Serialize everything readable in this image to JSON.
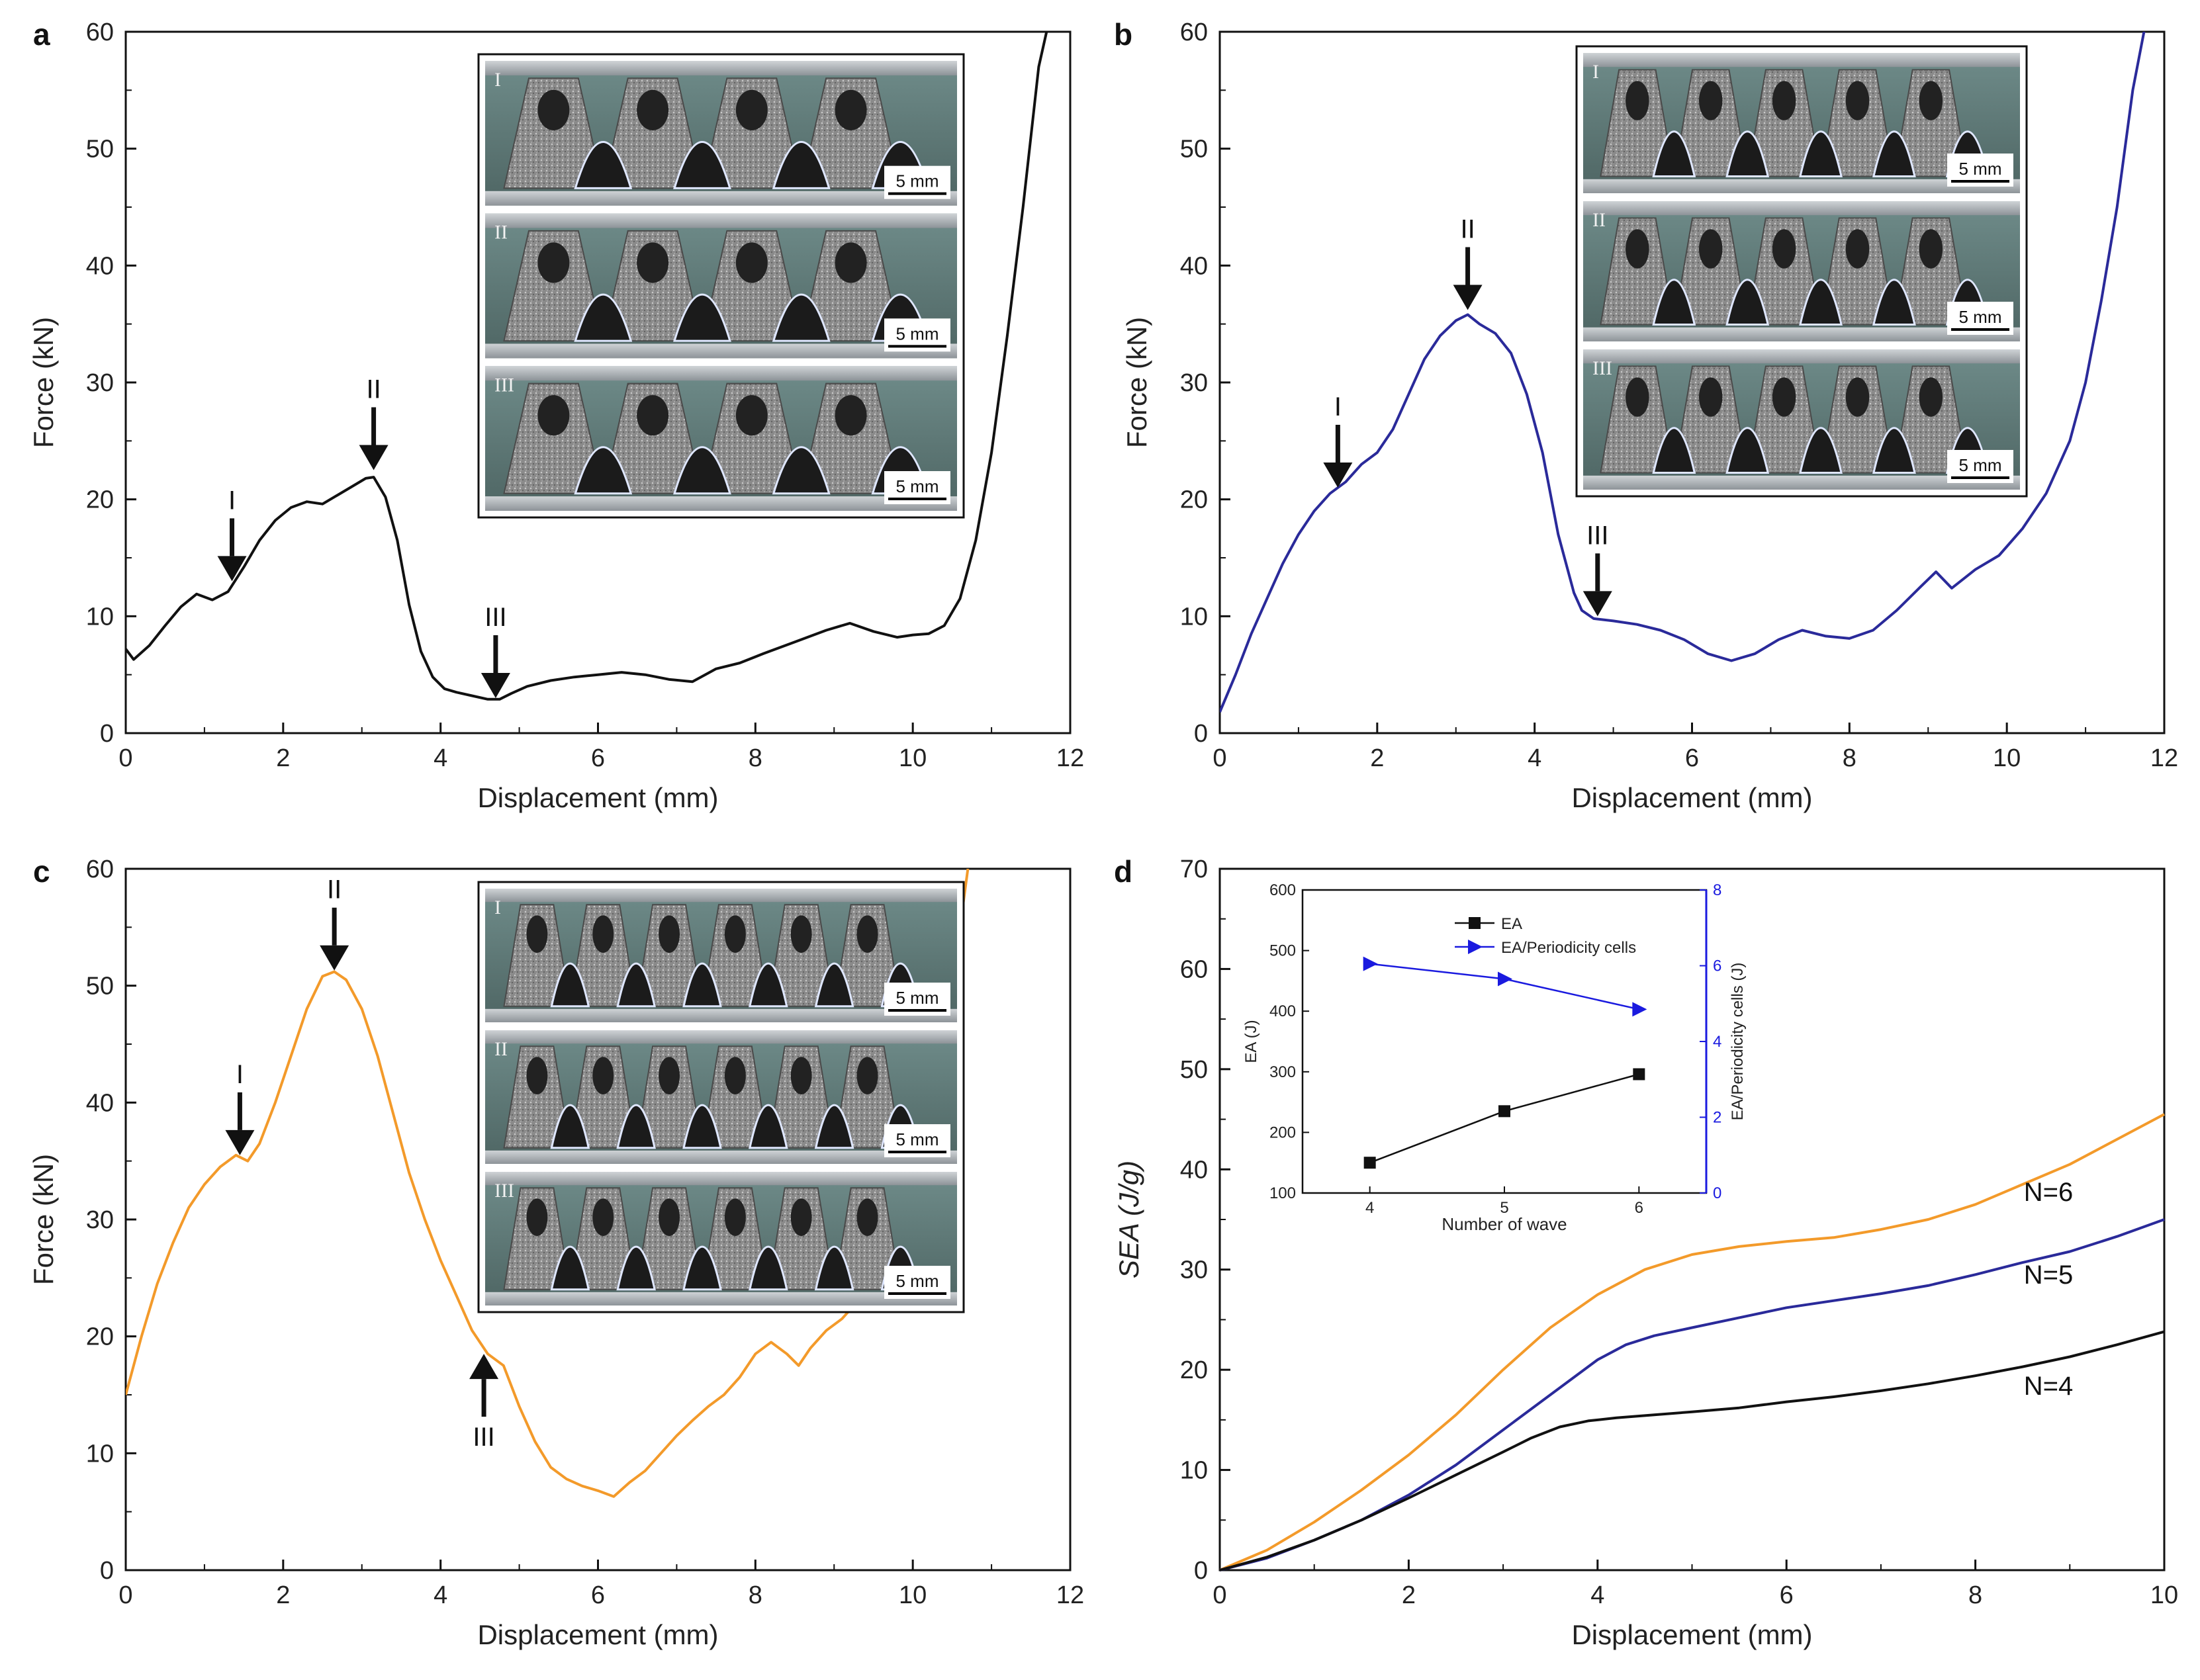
{
  "panels": [
    {
      "id": "a",
      "panel_label": "a",
      "chart_data": {
        "type": "line",
        "xlabel": "Displacement (mm)",
        "ylabel": "Force (kN)",
        "xlim": [
          0,
          12
        ],
        "ylim": [
          0,
          60
        ],
        "xticks": [
          0,
          2,
          4,
          6,
          8,
          10,
          12
        ],
        "yticks": [
          0,
          10,
          20,
          30,
          40,
          50,
          60
        ],
        "color": "#111111",
        "series": [
          {
            "x": [
              0,
              0.1,
              0.3,
              0.5,
              0.7,
              0.9,
              1.1,
              1.3,
              1.5,
              1.7,
              1.9,
              2.1,
              2.3,
              2.5,
              2.7,
              2.9,
              3.05,
              3.15,
              3.3,
              3.45,
              3.6,
              3.75,
              3.9,
              4.05,
              4.2,
              4.4,
              4.6,
              4.75,
              4.9,
              5.1,
              5.4,
              5.7,
              6.0,
              6.3,
              6.6,
              6.9,
              7.2,
              7.5,
              7.8,
              8.1,
              8.5,
              8.9,
              9.2,
              9.5,
              9.8,
              10.0,
              10.2,
              10.4,
              10.6,
              10.8,
              11.0,
              11.2,
              11.4,
              11.6,
              11.8
            ],
            "y": [
              7.2,
              6.3,
              7.5,
              9.2,
              10.8,
              11.9,
              11.4,
              12.1,
              14.2,
              16.5,
              18.2,
              19.3,
              19.8,
              19.6,
              20.4,
              21.2,
              21.8,
              21.9,
              20.2,
              16.5,
              11.0,
              7.0,
              4.8,
              3.8,
              3.5,
              3.2,
              2.9,
              2.9,
              3.4,
              4.0,
              4.5,
              4.8,
              5.0,
              5.2,
              5.0,
              4.6,
              4.4,
              5.5,
              6.0,
              6.8,
              7.8,
              8.8,
              9.4,
              8.7,
              8.2,
              8.4,
              8.5,
              9.2,
              11.5,
              16.5,
              24.0,
              34.0,
              45.0,
              57.0,
              63.0
            ]
          }
        ],
        "annotations": [
          {
            "label": "I",
            "x": 1.35,
            "y": 13.0,
            "dir": "down"
          },
          {
            "label": "II",
            "x": 3.15,
            "y": 22.5,
            "dir": "down"
          },
          {
            "label": "III",
            "x": 4.7,
            "y": 3.0,
            "dir": "down"
          }
        ]
      },
      "inset_photos": [
        {
          "label": "I",
          "scale": "5 mm"
        },
        {
          "label": "II",
          "scale": "5 mm"
        },
        {
          "label": "III",
          "scale": "5 mm"
        }
      ]
    },
    {
      "id": "b",
      "panel_label": "b",
      "chart_data": {
        "type": "line",
        "xlabel": "Displacement (mm)",
        "ylabel": "Force (kN)",
        "xlim": [
          0,
          12
        ],
        "ylim": [
          0,
          60
        ],
        "xticks": [
          0,
          2,
          4,
          6,
          8,
          10,
          12
        ],
        "yticks": [
          0,
          10,
          20,
          30,
          40,
          50,
          60
        ],
        "color": "#2a2a9a",
        "series": [
          {
            "x": [
              0,
              0.2,
              0.4,
              0.6,
              0.8,
              1.0,
              1.2,
              1.4,
              1.6,
              1.8,
              2.0,
              2.2,
              2.4,
              2.6,
              2.8,
              3.0,
              3.15,
              3.3,
              3.5,
              3.7,
              3.9,
              4.1,
              4.3,
              4.5,
              4.6,
              4.75,
              5.0,
              5.3,
              5.6,
              5.9,
              6.2,
              6.5,
              6.8,
              7.1,
              7.4,
              7.7,
              8.0,
              8.3,
              8.6,
              8.9,
              9.1,
              9.3,
              9.6,
              9.9,
              10.2,
              10.5,
              10.8,
              11.0,
              11.2,
              11.4,
              11.6,
              11.8
            ],
            "y": [
              1.8,
              5.0,
              8.5,
              11.5,
              14.5,
              17.0,
              19.0,
              20.5,
              21.5,
              23.0,
              24.0,
              26.0,
              29.0,
              32.0,
              34.0,
              35.3,
              35.8,
              35.0,
              34.2,
              32.5,
              29.0,
              24.0,
              17.0,
              12.0,
              10.5,
              9.8,
              9.6,
              9.3,
              8.8,
              8.0,
              6.8,
              6.2,
              6.8,
              8.0,
              8.8,
              8.3,
              8.1,
              8.8,
              10.5,
              12.5,
              13.8,
              12.4,
              14.0,
              15.2,
              17.5,
              20.5,
              25.0,
              30.0,
              37.0,
              45.0,
              55.0,
              62.0
            ]
          }
        ],
        "annotations": [
          {
            "label": "I",
            "x": 1.5,
            "y": 21.0,
            "dir": "down"
          },
          {
            "label": "II",
            "x": 3.15,
            "y": 36.2,
            "dir": "down"
          },
          {
            "label": "III",
            "x": 4.8,
            "y": 10.0,
            "dir": "down"
          }
        ]
      },
      "inset_photos": [
        {
          "label": "I",
          "scale": "5 mm"
        },
        {
          "label": "II",
          "scale": "5 mm"
        },
        {
          "label": "III",
          "scale": "5 mm"
        }
      ]
    },
    {
      "id": "c",
      "panel_label": "c",
      "chart_data": {
        "type": "line",
        "xlabel": "Displacement (mm)",
        "ylabel": "Force (kN)",
        "xlim": [
          0,
          12
        ],
        "ylim": [
          0,
          60
        ],
        "xticks": [
          0,
          2,
          4,
          6,
          8,
          10,
          12
        ],
        "yticks": [
          0,
          10,
          20,
          30,
          40,
          50,
          60
        ],
        "color": "#f39a2a",
        "series": [
          {
            "x": [
              0,
              0.2,
              0.4,
              0.6,
              0.8,
              1.0,
              1.2,
              1.4,
              1.55,
              1.7,
              1.9,
              2.1,
              2.3,
              2.5,
              2.65,
              2.8,
              3.0,
              3.2,
              3.4,
              3.6,
              3.8,
              4.0,
              4.2,
              4.4,
              4.6,
              4.8,
              5.0,
              5.2,
              5.4,
              5.6,
              5.8,
              6.0,
              6.2,
              6.4,
              6.6,
              6.8,
              7.0,
              7.2,
              7.4,
              7.6,
              7.8,
              8.0,
              8.2,
              8.4,
              8.55,
              8.7,
              8.9,
              9.1,
              9.3,
              9.5,
              9.7,
              9.9,
              10.1,
              10.3,
              10.5,
              10.7
            ],
            "y": [
              15.0,
              20.0,
              24.5,
              28.0,
              31.0,
              33.0,
              34.5,
              35.5,
              35.0,
              36.5,
              40.0,
              44.0,
              48.0,
              50.8,
              51.2,
              50.5,
              48.0,
              44.0,
              39.0,
              34.0,
              30.0,
              26.5,
              23.5,
              20.5,
              18.5,
              17.5,
              14.0,
              11.0,
              8.8,
              7.8,
              7.2,
              6.8,
              6.3,
              7.5,
              8.5,
              10.0,
              11.5,
              12.8,
              14.0,
              15.0,
              16.5,
              18.5,
              19.5,
              18.5,
              17.5,
              19.0,
              20.5,
              21.5,
              23.0,
              25.0,
              28.0,
              31.0,
              36.0,
              42.0,
              50.0,
              60.0
            ]
          }
        ],
        "annotations": [
          {
            "label": "I",
            "x": 1.45,
            "y": 35.5,
            "dir": "down"
          },
          {
            "label": "II",
            "x": 2.65,
            "y": 51.3,
            "dir": "down"
          },
          {
            "label": "III",
            "x": 4.55,
            "y": 18.5,
            "dir": "up"
          }
        ]
      },
      "inset_photos": [
        {
          "label": "I",
          "scale": "5 mm"
        },
        {
          "label": "II",
          "scale": "5 mm"
        },
        {
          "label": "III",
          "scale": "5 mm"
        }
      ]
    },
    {
      "id": "d",
      "panel_label": "d",
      "chart_data": {
        "type": "line",
        "xlabel": "Displacement (mm)",
        "ylabel": "SEA (J/g)",
        "xlim": [
          0,
          10
        ],
        "ylim": [
          0,
          70
        ],
        "xticks": [
          0,
          2,
          4,
          6,
          8,
          10
        ],
        "yticks": [
          0,
          10,
          20,
          30,
          40,
          50,
          60,
          70
        ],
        "series": [
          {
            "name": "N=6",
            "color": "#f39a2a",
            "x": [
              0,
              0.5,
              1.0,
              1.5,
              2.0,
              2.5,
              3.0,
              3.5,
              4.0,
              4.5,
              5.0,
              5.5,
              6.0,
              6.5,
              7.0,
              7.5,
              8.0,
              8.5,
              9.0,
              9.5,
              10.0
            ],
            "y": [
              0,
              2.0,
              4.8,
              8.0,
              11.5,
              15.5,
              20.0,
              24.2,
              27.5,
              30.0,
              31.5,
              32.3,
              32.8,
              33.2,
              34.0,
              35.0,
              36.5,
              38.5,
              40.5,
              43.0,
              45.5
            ]
          },
          {
            "name": "N=5",
            "color": "#2a2a9a",
            "x": [
              0,
              0.5,
              1.0,
              1.5,
              2.0,
              2.5,
              3.0,
              3.5,
              4.0,
              4.3,
              4.6,
              5.0,
              5.5,
              6.0,
              6.5,
              7.0,
              7.5,
              8.0,
              8.5,
              9.0,
              9.5,
              10.0
            ],
            "y": [
              0,
              1.2,
              3.0,
              5.0,
              7.5,
              10.5,
              14.0,
              17.5,
              21.0,
              22.5,
              23.4,
              24.2,
              25.2,
              26.2,
              26.9,
              27.6,
              28.4,
              29.5,
              30.7,
              31.8,
              33.3,
              35.0
            ]
          },
          {
            "name": "N=4",
            "color": "#111111",
            "x": [
              0,
              0.5,
              1.0,
              1.5,
              2.0,
              2.5,
              3.0,
              3.3,
              3.6,
              3.9,
              4.2,
              4.6,
              5.0,
              5.5,
              6.0,
              6.5,
              7.0,
              7.5,
              8.0,
              8.5,
              9.0,
              9.5,
              10.0
            ],
            "y": [
              0,
              1.3,
              3.0,
              5.0,
              7.2,
              9.5,
              11.8,
              13.2,
              14.3,
              14.9,
              15.2,
              15.5,
              15.8,
              16.2,
              16.8,
              17.3,
              17.9,
              18.6,
              19.4,
              20.3,
              21.3,
              22.5,
              23.8
            ]
          }
        ],
        "inset": {
          "type": "line",
          "xlabel": "Number of  wave",
          "ylabel_left": "EA (J)",
          "ylabel_right": "EA/Periodicity cells (J)",
          "xlim": [
            3.5,
            6.5
          ],
          "ylim_left": [
            100,
            600
          ],
          "ylim_right": [
            0,
            8
          ],
          "xticks": [
            4,
            5,
            6
          ],
          "yticks_left": [
            100,
            200,
            300,
            400,
            500,
            600
          ],
          "yticks_right": [
            0,
            2,
            4,
            6,
            8
          ],
          "legend_position": "top-left",
          "series": [
            {
              "name": "EA",
              "axis": "left",
              "color": "#111111",
              "marker": "square",
              "x": [
                4,
                5,
                6
              ],
              "y": [
                150,
                235,
                296
              ]
            },
            {
              "name": "EA/Periodicity cells",
              "axis": "right",
              "color": "#1a1adf",
              "marker": "triangle-right",
              "x": [
                4,
                5,
                6
              ],
              "y": [
                6.05,
                5.65,
                4.85
              ]
            }
          ]
        },
        "curve_labels": [
          "N=6",
          "N=5",
          "N=4"
        ]
      }
    }
  ]
}
